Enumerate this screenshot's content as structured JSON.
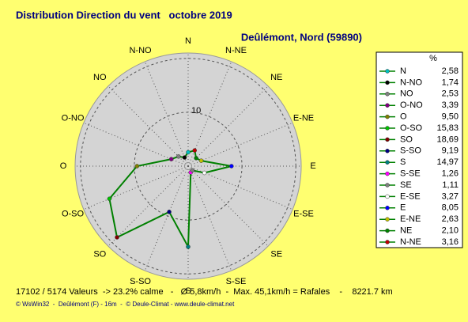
{
  "chart_data": {
    "type": "radar",
    "title": "Distribution Direction du vent   octobre 2019",
    "subtitle": "Deûlémont, Nord (59890)",
    "legend_header": "%",
    "categories": [
      "N",
      "N-NO",
      "NO",
      "O-NO",
      "O",
      "O-SO",
      "SO",
      "S-SO",
      "S",
      "S-SE",
      "SE",
      "E-SE",
      "E",
      "E-NE",
      "NE",
      "N-NE"
    ],
    "values": [
      2.58,
      1.74,
      2.53,
      3.39,
      9.5,
      15.83,
      18.69,
      9.19,
      14.97,
      1.26,
      1.11,
      3.27,
      8.05,
      2.63,
      2.1,
      3.16
    ],
    "value_labels": [
      "2,58",
      "1,74",
      "2,53",
      "3,39",
      "9,50",
      "15,83",
      "18,69",
      "9,19",
      "14,97",
      "1,26",
      "1,11",
      "3,27",
      "8,05",
      "2,63",
      "2,10",
      "3,16"
    ],
    "marker_colors": [
      "#00c0c0",
      "#000000",
      "#808080",
      "#800080",
      "#808000",
      "#00c000",
      "#800000",
      "#000080",
      "#008080",
      "#ff00ff",
      "#808080",
      "#ffffff",
      "#0000ff",
      "#c0c000",
      "#008000",
      "#c00000"
    ],
    "color": "#008000",
    "rlim": [
      0,
      21
    ],
    "rticks": [
      10
    ],
    "grid": true,
    "footer": "17102 / 5174 Valeurs  -> 23.2% calme   -   Ø 5,8km/h  -  Max. 45,1km/h = Rafales    -    8221.7 km",
    "credits": "© WsWin32  -  Deûlémont (F) - 16m  -  © Deule-Climat - www.deule-climat.net"
  }
}
